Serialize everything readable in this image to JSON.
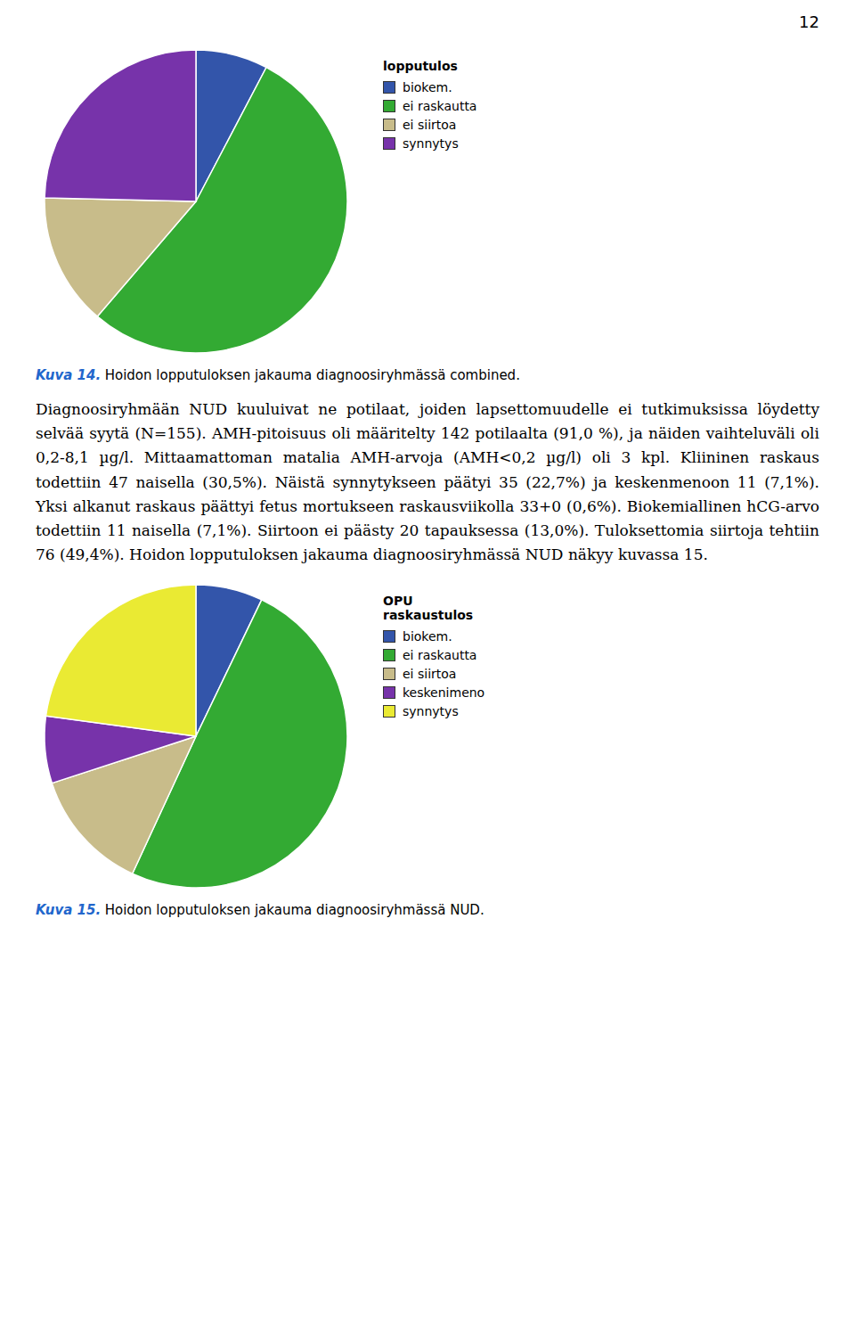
{
  "page_number": "12",
  "text": "Diagnoosiryhmään  NUD  kuuluivat  ne  potilaat,  joiden  lapsettomuudelle  ei  tutkimuksissa löydetty selvää syytä (N=155). AMH-pitoisuus oli määritelty 142 potilaalta (91,0 %), ja näiden vaihteluväli oli 0,2-8,1 µg/l. Mittaamattoman matalia AMH-arvoja (AMH<0,2 µg/l) oli 3 kpl. Kliininen raskaus todettiin 47 naisella (30,5%). Näistä synnytykseen päätyi 35 (22,7%) ja keskenmenoon 11 (7,1%). Yksi alkanut raskaus päättyi fetus mortukseen raskausviikolla 33+0 (0,6%). Biokemiallinen hCG-arvo todettiin 11 naisella (7,1%). Siirtoon ei päästy 20 tapauksessa (13,0%). Tuloksettomia siirtoja tehtiin 76 (49,4%). Hoidon lopputuloksen jakauma diagnoosiryhmässä NUD näkyy kuvassa 15.",
  "chart_data": [
    {
      "type": "pie",
      "title": "lopputulos",
      "categories": [
        "biokem.",
        "ei raskautta",
        "ei siirtoa",
        "synnytys"
      ],
      "values": [
        7.1,
        49.4,
        13.0,
        22.7
      ],
      "colors": [
        "#3355aa",
        "#33aa33",
        "#c8bc8a",
        "#7733aa"
      ],
      "legend": "right",
      "caption": [
        "Kuva 14.",
        "Hoidon lopputuloksen jakauma diagnoosiryhmässä combined."
      ]
    },
    {
      "type": "pie",
      "title": "OPU\nraskaustulos",
      "categories": [
        "biokem.",
        "ei raskautta",
        "ei siirtoa",
        "keskenimeno",
        "synnytys"
      ],
      "values": [
        7.1,
        49.4,
        13.0,
        7.1,
        22.7
      ],
      "colors": [
        "#3355aa",
        "#33aa33",
        "#c8bc8a",
        "#7733aa",
        "#eaea33"
      ],
      "legend": "right",
      "caption": [
        "Kuva 15.",
        "Hoidon lopputuloksen jakauma diagnoosiryhmässä NUD."
      ]
    }
  ]
}
